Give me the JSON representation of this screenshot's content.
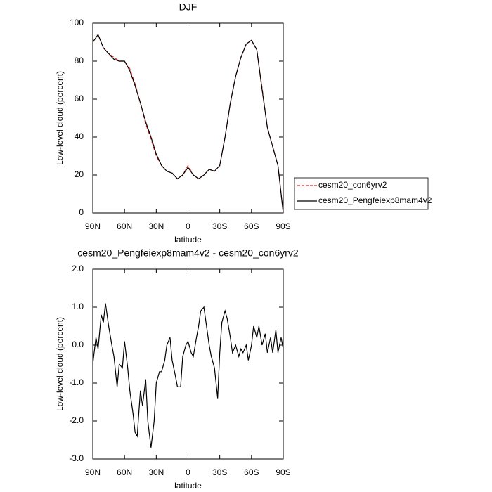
{
  "chart_data": [
    {
      "type": "line",
      "title": "DJF",
      "xlabel": "latitude",
      "ylabel": "Low-level cloud (percent)",
      "x": [
        90,
        85,
        80,
        75,
        70,
        65,
        60,
        55,
        50,
        45,
        40,
        35,
        30,
        25,
        20,
        15,
        10,
        5,
        0,
        -5,
        -10,
        -15,
        -20,
        -25,
        -30,
        -35,
        -40,
        -45,
        -50,
        -55,
        -60,
        -65,
        -70,
        -75,
        -80,
        -85,
        -90
      ],
      "series": [
        {
          "name": "cesm20_con6yrv2",
          "color": "#e8251e",
          "linestyle": "dashed",
          "values": [
            90,
            94,
            87,
            84,
            82,
            80,
            80,
            76,
            68,
            58,
            47,
            39,
            30,
            25,
            22,
            21,
            18,
            20,
            25,
            20,
            18,
            20,
            23,
            22,
            25,
            40,
            58,
            72,
            82,
            89,
            91,
            86,
            66,
            45,
            35,
            25,
            0
          ]
        },
        {
          "name": "cesm20_Pengfeiexp8mam4v2",
          "color": "#000000",
          "linestyle": "solid",
          "values": [
            90,
            94,
            87,
            84,
            81,
            80,
            80,
            75,
            67,
            58,
            48,
            40,
            31,
            25,
            22,
            21,
            18,
            20,
            24,
            20,
            18,
            20,
            23,
            22,
            25,
            40,
            58,
            72,
            82,
            89,
            91,
            86,
            65,
            45,
            35,
            25,
            0
          ]
        }
      ],
      "xlim": [
        90,
        -90
      ],
      "xticks": [
        {
          "value": 90,
          "label": "90N"
        },
        {
          "value": 60,
          "label": "60N"
        },
        {
          "value": 30,
          "label": "30N"
        },
        0,
        {
          "value": -30,
          "label": "30S"
        },
        {
          "value": -60,
          "label": "60S"
        },
        {
          "value": -90,
          "label": "90S"
        }
      ],
      "ylim": [
        0,
        100
      ],
      "yticks": [
        0,
        20,
        40,
        60,
        80,
        100
      ],
      "legend": "outside-right"
    },
    {
      "type": "line",
      "title": "cesm20_Pengfeiexp8mam4v2 - cesm20_con6yrv2",
      "xlabel": "latitude",
      "ylabel": "Low-level cloud (percent)",
      "x": [
        90,
        87,
        85,
        82,
        80,
        78,
        75,
        72,
        70,
        67,
        65,
        62,
        60,
        57,
        55,
        52,
        50,
        48,
        45,
        43,
        40,
        38,
        35,
        32,
        30,
        27,
        25,
        22,
        20,
        17,
        15,
        12,
        10,
        7,
        5,
        2,
        0,
        -3,
        -5,
        -8,
        -10,
        -12,
        -15,
        -17,
        -20,
        -22,
        -25,
        -28,
        -30,
        -32,
        -35,
        -37,
        -40,
        -42,
        -45,
        -48,
        -50,
        -52,
        -55,
        -57,
        -60,
        -62,
        -65,
        -67,
        -70,
        -73,
        -75,
        -78,
        -80,
        -83,
        -85,
        -88,
        -90
      ],
      "series": [
        {
          "color": "#000000",
          "linestyle": "solid",
          "values": [
            -0.5,
            0.2,
            -0.1,
            0.8,
            0.6,
            1.1,
            0.5,
            0.0,
            -0.3,
            -1.1,
            -0.5,
            -0.6,
            0.1,
            -0.6,
            -1.2,
            -1.8,
            -2.3,
            -2.4,
            -1.2,
            -1.6,
            -0.9,
            -2.0,
            -2.7,
            -2.0,
            -1.0,
            -0.7,
            -0.7,
            -0.4,
            0.0,
            0.2,
            -0.4,
            -0.8,
            -1.1,
            -1.1,
            -0.3,
            0.0,
            0.1,
            -0.2,
            -0.3,
            0.2,
            0.5,
            0.9,
            1.0,
            0.6,
            0.0,
            -0.3,
            -0.6,
            -1.4,
            -0.2,
            0.6,
            0.9,
            0.7,
            0.2,
            -0.2,
            0.0,
            -0.3,
            -0.1,
            -0.2,
            0.0,
            -0.4,
            0.0,
            0.5,
            0.2,
            0.5,
            0.0,
            0.3,
            -0.2,
            0.2,
            -0.2,
            0.4,
            -0.2,
            0.2,
            -0.1
          ]
        }
      ],
      "xlim": [
        90,
        -90
      ],
      "xticks": [
        {
          "value": 90,
          "label": "90N"
        },
        {
          "value": 60,
          "label": "60N"
        },
        {
          "value": 30,
          "label": "30N"
        },
        0,
        {
          "value": -30,
          "label": "30S"
        },
        {
          "value": -60,
          "label": "60S"
        },
        {
          "value": -90,
          "label": "90S"
        }
      ],
      "ylim": [
        -3,
        2
      ],
      "yticks": [
        {
          "value": -3,
          "label": "-3.0"
        },
        {
          "value": -2,
          "label": "-2.0"
        },
        {
          "value": -1,
          "label": "-1.0"
        },
        {
          "value": 0,
          "label": "0.0"
        },
        {
          "value": 1,
          "label": "1.0"
        },
        {
          "value": 2,
          "label": "2.0"
        }
      ]
    }
  ]
}
